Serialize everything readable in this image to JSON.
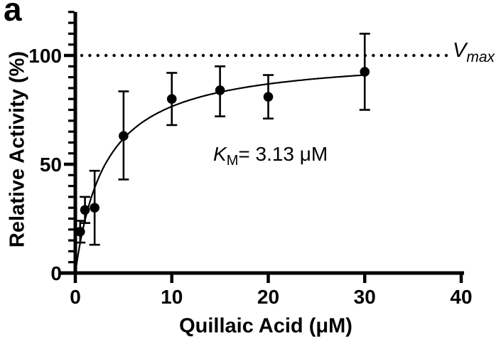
{
  "panel_label": "a",
  "annotations": {
    "km": {
      "symbol": "K",
      "subscript": "M",
      "value": "= 3.13 μM"
    },
    "vmax": {
      "symbol": "V",
      "subscript": "max"
    }
  },
  "chart_data": {
    "type": "scatter",
    "title": "",
    "xlabel": "Quillaic Acid (μM)",
    "ylabel": "Relative Activity (%)",
    "xlim": [
      0,
      40
    ],
    "ylim": [
      0,
      120
    ],
    "x_ticks": [
      0,
      10,
      20,
      30,
      40
    ],
    "y_major_ticks": [
      0,
      50,
      100
    ],
    "y_minor_tick_step": 5,
    "grid": false,
    "series": [
      {
        "x": [
          0.5,
          1,
          2,
          5,
          10,
          15,
          20,
          30
        ],
        "y": [
          19,
          29,
          30,
          63,
          80,
          84,
          81,
          92.5
        ],
        "y_err_low": [
          14,
          23,
          13,
          43,
          68,
          72,
          71,
          75
        ],
        "y_err_high": [
          24,
          35,
          47,
          83.5,
          92,
          95,
          91,
          110
        ],
        "marker": "filled-circle",
        "color": "#000000"
      }
    ],
    "fit_curve": {
      "model": "michaelis-menten",
      "km_uM": 3.13,
      "vmax_pct": 100.5,
      "x_start": 0,
      "x_end": 30
    },
    "reference_line": {
      "y": 100,
      "style": "dotted",
      "label": "Vmax"
    },
    "colors": {
      "foreground": "#000000",
      "background": "#ffffff"
    }
  }
}
